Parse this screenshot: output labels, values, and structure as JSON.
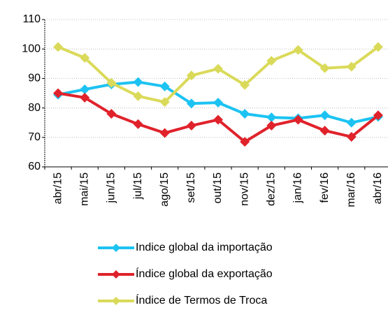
{
  "chart_data": {
    "type": "line",
    "categories": [
      "abr/15",
      "mai/15",
      "jun/15",
      "jul/15",
      "ago/15",
      "set/15",
      "out/15",
      "nov/15",
      "dez/15",
      "jan/16",
      "fev/16",
      "mar/16",
      "abr/16"
    ],
    "series": [
      {
        "name": "Indice global da importação",
        "color": "#1cc3f2",
        "values": [
          84.5,
          86.3,
          88,
          88.8,
          87.3,
          81.5,
          81.8,
          78,
          76.8,
          76.5,
          77.5,
          75,
          77
        ]
      },
      {
        "name": "Índice global da exportação",
        "color": "#e0222b",
        "values": [
          85,
          83.5,
          78,
          74.5,
          71.5,
          74,
          76,
          68.5,
          74,
          76,
          72.3,
          70.2,
          77.5
        ]
      },
      {
        "name": "Índice de Termos de Troca",
        "color": "#dada5a",
        "values": [
          100.7,
          97,
          88.5,
          84,
          82,
          91,
          93.3,
          87.8,
          96,
          99.7,
          93.5,
          94,
          100.7
        ]
      }
    ],
    "ylim": [
      60,
      110
    ],
    "yticks": [
      60,
      70,
      80,
      90,
      100,
      110
    ],
    "grid": true
  }
}
